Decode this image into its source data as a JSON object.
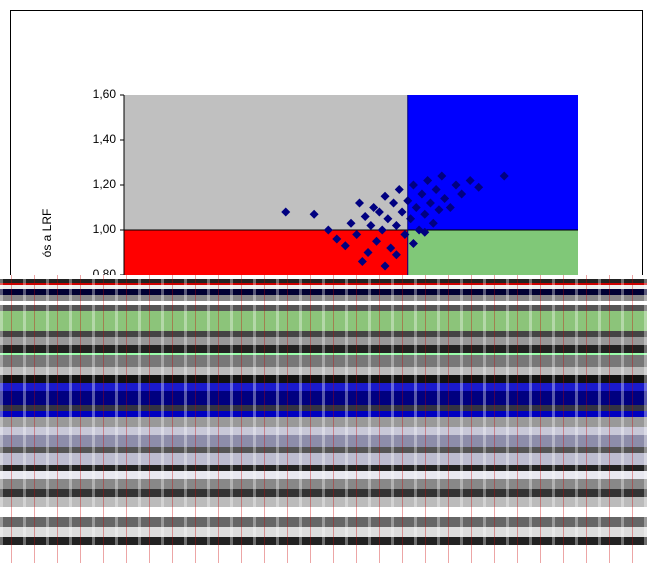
{
  "chart_data": {
    "type": "scatter",
    "y_label": "ós a LRF",
    "xlim": [
      0,
      1.6
    ],
    "ylim": [
      0.6,
      1.6
    ],
    "yticks": [
      {
        "value": 0.8,
        "label": "0,80"
      },
      {
        "value": 1.0,
        "label": "1,00"
      },
      {
        "value": 1.2,
        "label": "1,20"
      },
      {
        "value": 1.4,
        "label": "1,40"
      },
      {
        "value": 1.6,
        "label": "1,60"
      }
    ],
    "x_divider": 1.0,
    "y_divider": 1.0,
    "quadrant_colors": {
      "upper_left": "#c0c0c0",
      "upper_right": "#0000ff",
      "lower_left": "#ff0000",
      "lower_right": "#80c878"
    },
    "divider_color": "#000080",
    "series": [
      {
        "color": "#000080",
        "x": [
          0.57,
          0.67,
          0.72,
          0.75,
          0.78,
          0.8,
          0.82,
          0.83,
          0.85,
          0.86,
          0.87,
          0.88,
          0.89,
          0.9,
          0.91,
          0.92,
          0.93,
          0.94,
          0.95,
          0.96,
          0.97,
          0.98,
          0.99,
          1.0,
          1.01,
          1.02,
          1.03,
          1.04,
          1.05,
          1.06,
          1.07,
          1.08,
          1.09,
          1.1,
          1.11,
          1.12,
          1.13,
          1.15,
          1.17,
          1.19,
          1.22,
          1.25,
          1.34,
          1.06,
          0.84,
          0.92,
          0.96,
          1.02
        ],
        "values": [
          1.08,
          1.07,
          1.0,
          0.96,
          0.93,
          1.03,
          0.98,
          1.12,
          1.06,
          0.9,
          1.02,
          1.1,
          0.95,
          1.08,
          1.0,
          1.15,
          1.05,
          0.92,
          1.12,
          1.02,
          1.18,
          1.08,
          0.98,
          1.13,
          1.05,
          1.2,
          1.1,
          1.0,
          1.16,
          1.07,
          1.22,
          1.12,
          1.03,
          1.18,
          1.09,
          1.24,
          1.14,
          1.1,
          1.2,
          1.16,
          1.22,
          1.19,
          1.24,
          0.99,
          0.86,
          0.84,
          0.89,
          0.94
        ]
      }
    ]
  }
}
